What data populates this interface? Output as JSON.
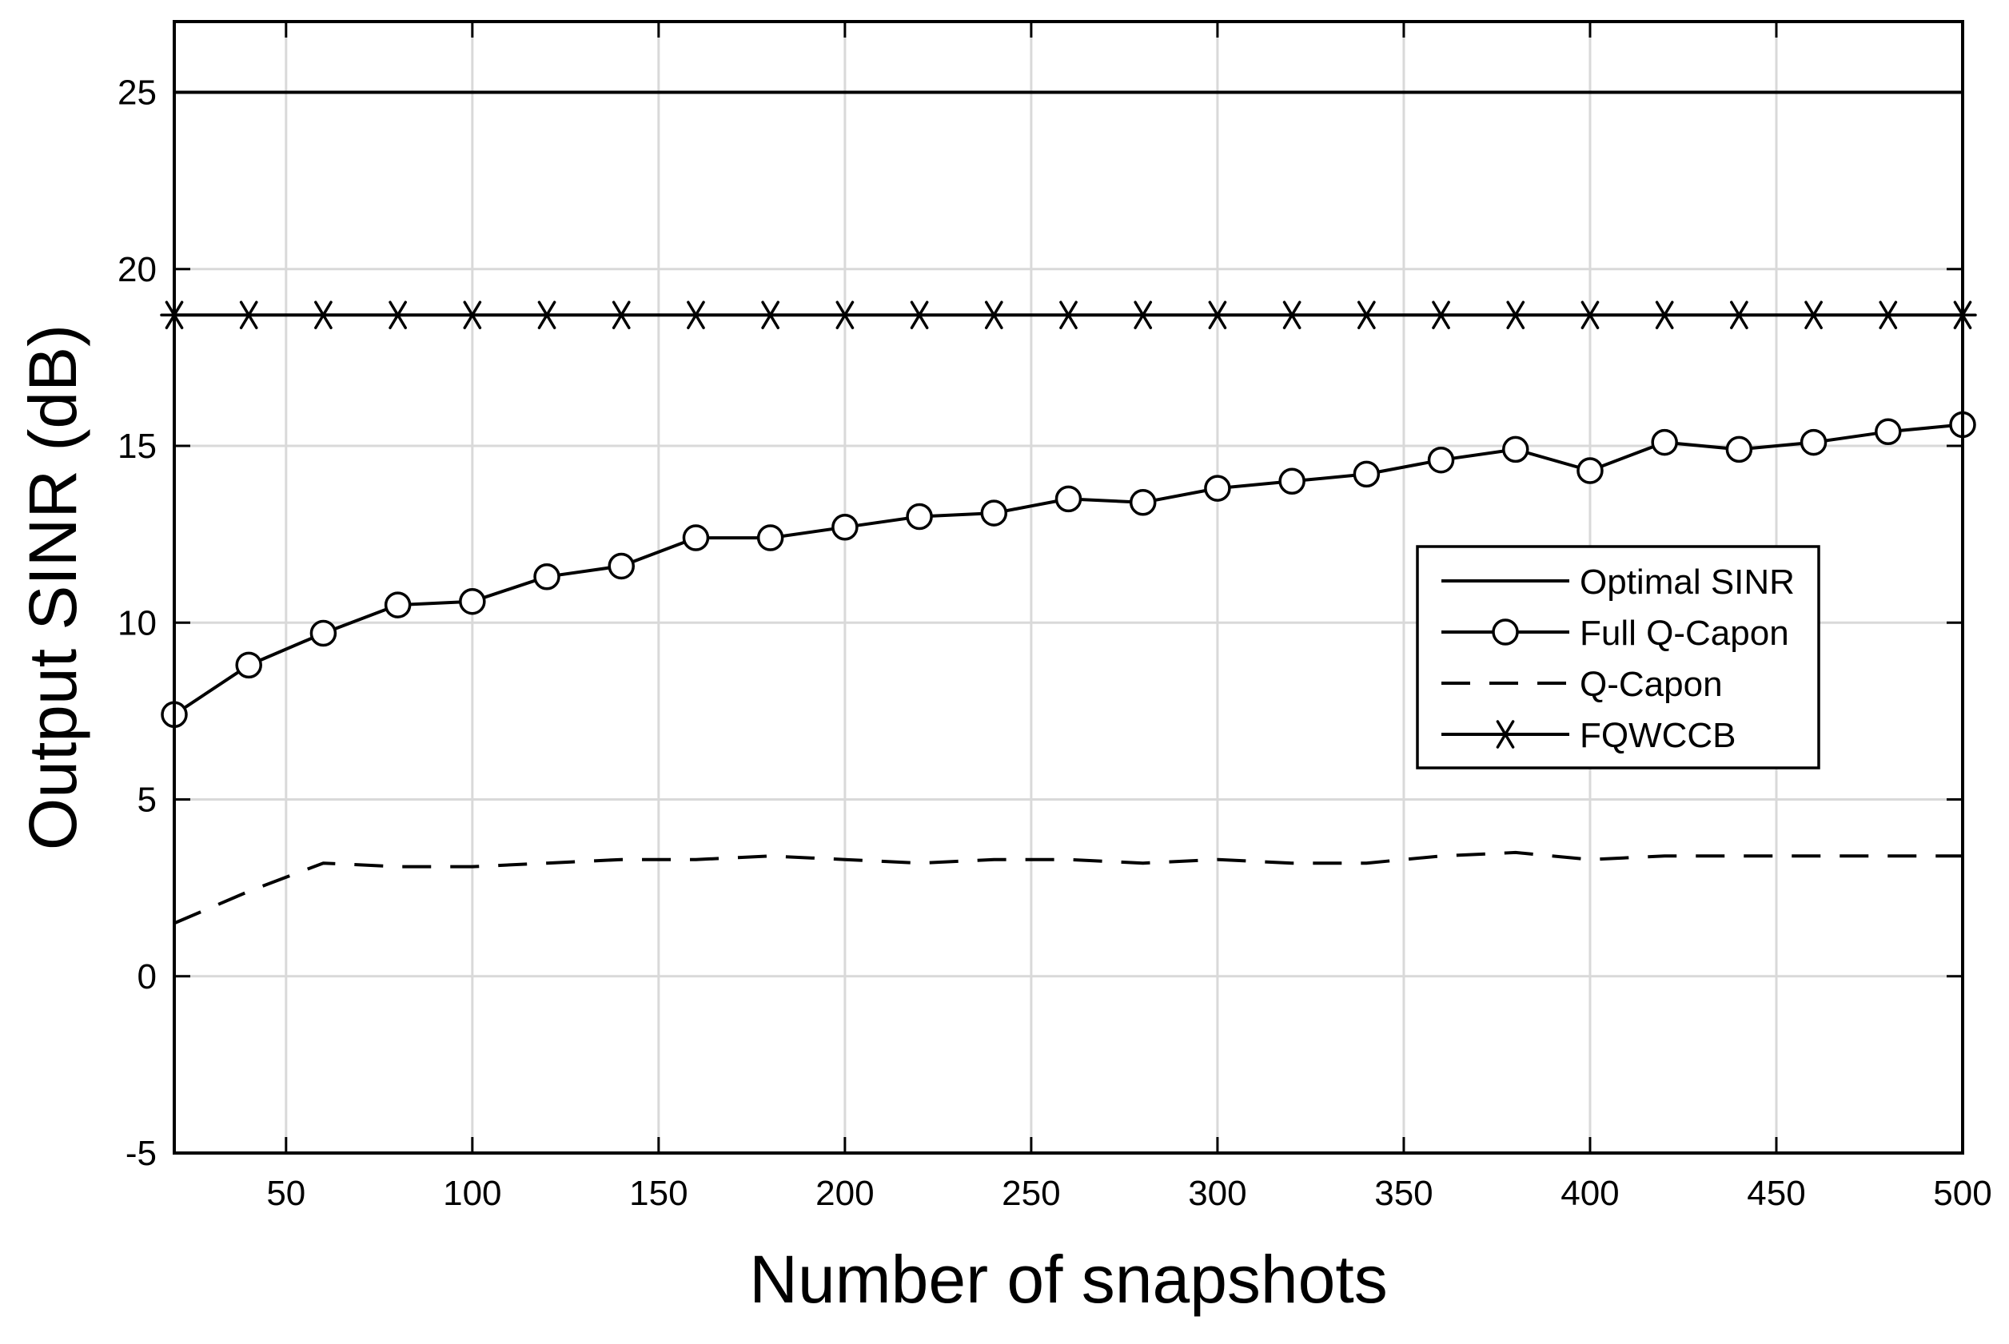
{
  "chart_data": {
    "type": "line",
    "title": "",
    "xlabel": "Number of snapshots",
    "ylabel": "Output SINR (dB)",
    "xlim": [
      20,
      500
    ],
    "ylim": [
      -5,
      27
    ],
    "x_ticks": [
      50,
      100,
      150,
      200,
      250,
      300,
      350,
      400,
      450,
      500
    ],
    "y_ticks": [
      -5,
      0,
      5,
      10,
      15,
      20,
      25
    ],
    "x_tick_labels": [
      "50",
      "100",
      "150",
      "200",
      "250",
      "300",
      "350",
      "400",
      "450",
      "500"
    ],
    "y_tick_labels": [
      "-5",
      "0",
      "5",
      "10",
      "15",
      "20",
      "25"
    ],
    "grid": true,
    "legend_position": "center-right",
    "x": [
      20,
      40,
      60,
      80,
      100,
      120,
      140,
      160,
      180,
      200,
      220,
      240,
      260,
      280,
      300,
      320,
      340,
      360,
      380,
      400,
      420,
      440,
      460,
      480,
      500
    ],
    "series": [
      {
        "name": "Optimal SINR",
        "marker": "none",
        "dash": "solid",
        "color": "#000000",
        "values": [
          25,
          25,
          25,
          25,
          25,
          25,
          25,
          25,
          25,
          25,
          25,
          25,
          25,
          25,
          25,
          25,
          25,
          25,
          25,
          25,
          25,
          25,
          25,
          25,
          25
        ]
      },
      {
        "name": "Full Q-Capon",
        "marker": "circle",
        "dash": "solid",
        "color": "#000000",
        "values": [
          7.4,
          8.8,
          9.7,
          10.5,
          10.6,
          11.3,
          11.6,
          12.4,
          12.4,
          12.7,
          13.0,
          13.1,
          13.5,
          13.4,
          13.8,
          14.0,
          14.2,
          14.6,
          14.9,
          14.3,
          15.1,
          14.9,
          15.1,
          15.4,
          15.6
        ]
      },
      {
        "name": "Q-Capon",
        "marker": "none",
        "dash": "dashed",
        "color": "#000000",
        "values": [
          1.5,
          2.4,
          3.2,
          3.1,
          3.1,
          3.2,
          3.3,
          3.3,
          3.4,
          3.3,
          3.2,
          3.3,
          3.3,
          3.2,
          3.3,
          3.2,
          3.2,
          3.4,
          3.5,
          3.3,
          3.4,
          3.4,
          3.4,
          3.4,
          3.4
        ]
      },
      {
        "name": "FQWCCB",
        "marker": "star",
        "dash": "solid",
        "color": "#000000",
        "values": [
          18.7,
          18.7,
          18.7,
          18.7,
          18.7,
          18.7,
          18.7,
          18.7,
          18.7,
          18.7,
          18.7,
          18.7,
          18.7,
          18.7,
          18.7,
          18.7,
          18.7,
          18.7,
          18.7,
          18.7,
          18.7,
          18.7,
          18.7,
          18.7,
          18.7
        ]
      }
    ]
  },
  "colors": {
    "grid": "#d9d9d9",
    "axis": "#000000",
    "background": "#ffffff"
  }
}
